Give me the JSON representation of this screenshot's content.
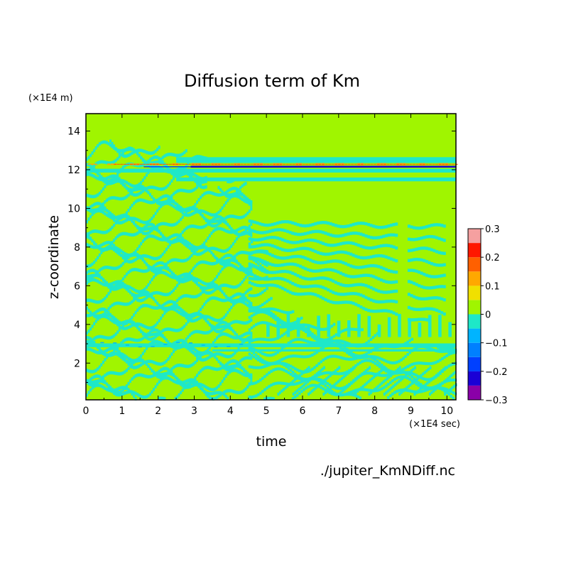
{
  "chart_data": {
    "type": "heatmap",
    "title": "Diffusion term of Km",
    "xlabel": "time",
    "ylabel": "z-coordinate",
    "x_unit": "(×1E4 sec)",
    "y_unit": "(×1E4 m)",
    "source_label": "./jupiter_KmNDiff.nc",
    "xlim": [
      0,
      10.25
    ],
    "ylim": [
      0.1,
      14.9
    ],
    "x_ticks": [
      "0",
      "1",
      "2",
      "3",
      "4",
      "5",
      "6",
      "7",
      "8",
      "9",
      "10"
    ],
    "y_ticks": [
      "2",
      "4",
      "6",
      "8",
      "10",
      "12",
      "14"
    ],
    "colorbar": {
      "levels": [
        -0.3,
        -0.25,
        -0.2,
        -0.15,
        -0.1,
        -0.05,
        0,
        0.05,
        0.1,
        0.15,
        0.2,
        0.25,
        0.3
      ],
      "tick_labels": [
        "−0.3",
        "−0.2",
        "−0.1",
        "0",
        "0.1",
        "0.2",
        "0.3"
      ],
      "colors": [
        "#8a00a8",
        "#1a00d6",
        "#0040ff",
        "#0080ff",
        "#00b4ff",
        "#1ee8c8",
        "#a0f500",
        "#f0e000",
        "#ffa800",
        "#ff6000",
        "#ff1800",
        "#f5a0a0"
      ]
    },
    "features": {
      "background_value": 0,
      "strong_band": {
        "z": 12.2,
        "values": [
          -0.25,
          0.2
        ],
        "x_range": [
          0,
          10.25
        ]
      },
      "weak_band": {
        "z": 2.9,
        "value": -0.08,
        "x_range": [
          0,
          10.25
        ]
      },
      "noise_region": {
        "z_range": [
          0.1,
          13.5
        ],
        "x_range": [
          0,
          4.5
        ],
        "values": [
          -0.05,
          0
        ]
      }
    }
  }
}
